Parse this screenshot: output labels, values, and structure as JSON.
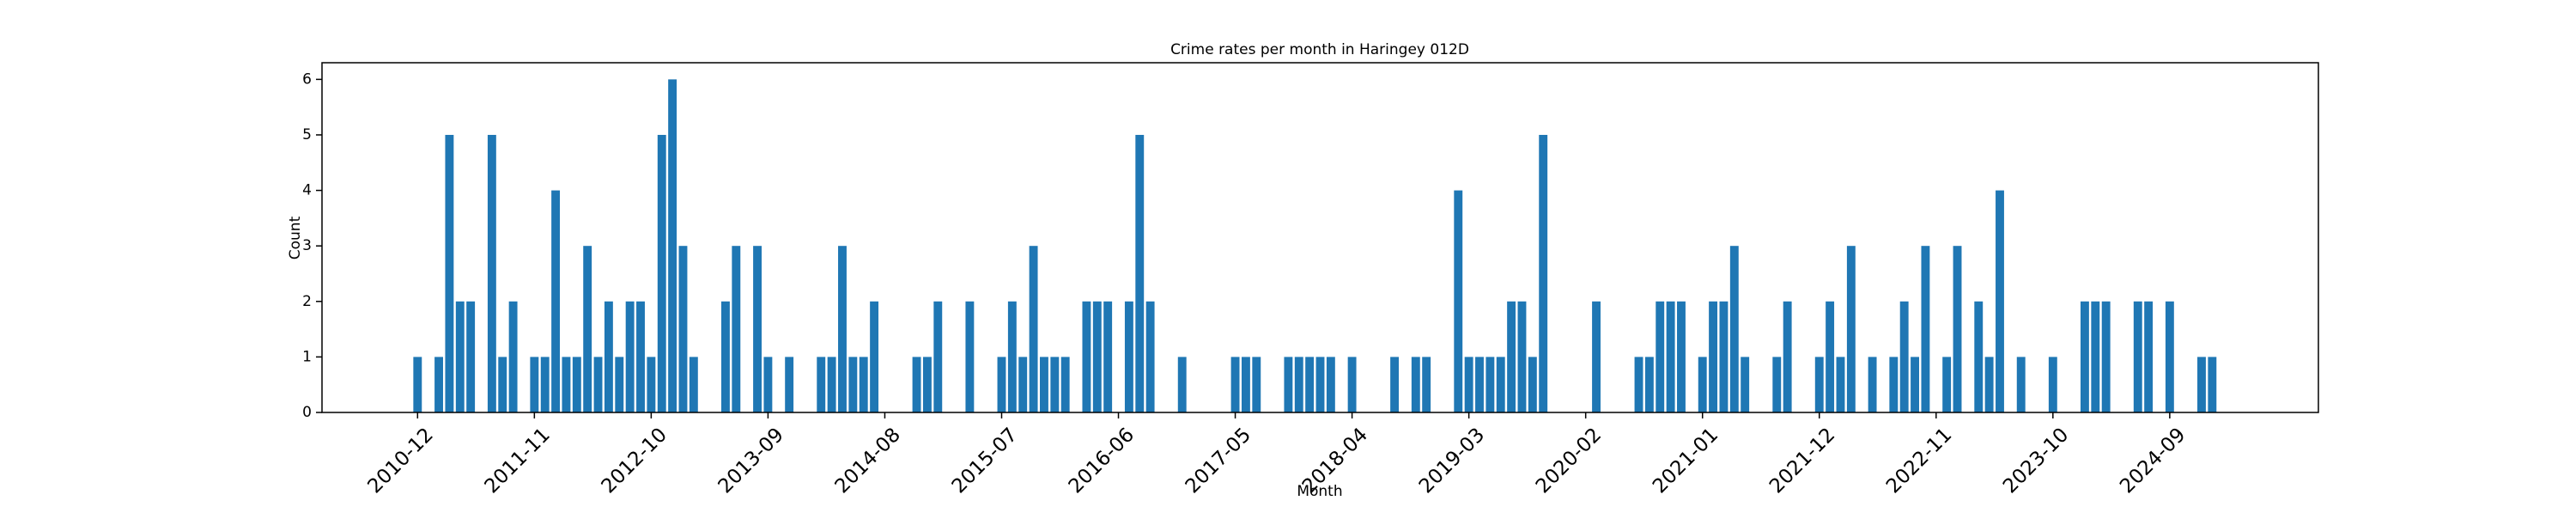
{
  "chart_data": {
    "type": "bar",
    "title": "Crime rates per month in Haringey 012D",
    "xlabel": "Month",
    "ylabel": "Count",
    "color": "#1f77b4",
    "x": [
      "2010-12",
      "2011-02",
      "2011-03",
      "2011-04",
      "2011-05",
      "2011-07",
      "2011-08",
      "2011-09",
      "2011-11",
      "2011-12",
      "2012-01",
      "2012-02",
      "2012-03",
      "2012-04",
      "2012-05",
      "2012-06",
      "2012-07",
      "2012-08",
      "2012-09",
      "2012-10",
      "2012-11",
      "2012-12",
      "2013-01",
      "2013-02",
      "2013-05",
      "2013-06",
      "2013-08",
      "2013-09",
      "2013-11",
      "2014-02",
      "2014-03",
      "2014-04",
      "2014-05",
      "2014-06",
      "2014-07",
      "2014-11",
      "2014-12",
      "2015-01",
      "2015-04",
      "2015-07",
      "2015-08",
      "2015-09",
      "2015-10",
      "2015-11",
      "2015-12",
      "2016-01",
      "2016-03",
      "2016-04",
      "2016-05",
      "2016-07",
      "2016-08",
      "2016-09",
      "2016-12",
      "2017-05",
      "2017-06",
      "2017-07",
      "2017-10",
      "2017-11",
      "2017-12",
      "2018-01",
      "2018-02",
      "2018-04",
      "2018-08",
      "2018-10",
      "2018-11",
      "2019-02",
      "2019-03",
      "2019-04",
      "2019-05",
      "2019-06",
      "2019-07",
      "2019-08",
      "2019-09",
      "2019-10",
      "2020-03",
      "2020-07",
      "2020-08",
      "2020-09",
      "2020-10",
      "2020-11",
      "2021-01",
      "2021-02",
      "2021-03",
      "2021-04",
      "2021-05",
      "2021-08",
      "2021-09",
      "2021-12",
      "2022-01",
      "2022-02",
      "2022-03",
      "2022-05",
      "2022-07",
      "2022-08",
      "2022-09",
      "2022-10",
      "2022-12",
      "2023-01",
      "2023-03",
      "2023-04",
      "2023-05",
      "2023-07",
      "2023-10",
      "2024-01",
      "2024-02",
      "2024-03",
      "2024-06",
      "2024-07",
      "2024-09",
      "2024-12",
      "2025-01"
    ],
    "values": [
      1,
      1,
      5,
      2,
      2,
      5,
      1,
      2,
      1,
      1,
      4,
      1,
      1,
      3,
      1,
      2,
      1,
      2,
      2,
      1,
      5,
      6,
      3,
      1,
      2,
      3,
      3,
      1,
      1,
      1,
      1,
      3,
      1,
      1,
      2,
      1,
      1,
      2,
      2,
      1,
      2,
      1,
      3,
      1,
      1,
      1,
      2,
      2,
      2,
      2,
      5,
      2,
      1,
      1,
      1,
      1,
      1,
      1,
      1,
      1,
      1,
      1,
      1,
      1,
      1,
      4,
      1,
      1,
      1,
      1,
      2,
      2,
      1,
      5,
      2,
      1,
      1,
      2,
      2,
      2,
      1,
      2,
      2,
      3,
      1,
      1,
      2,
      1,
      2,
      1,
      3,
      1,
      1,
      2,
      1,
      3,
      1,
      3,
      2,
      1,
      4,
      1,
      1,
      2,
      2,
      2,
      2,
      2,
      2,
      1,
      1
    ],
    "xlim": [
      "2010-03",
      "2025-11"
    ],
    "xticks": [
      "2010-12",
      "2011-11",
      "2012-10",
      "2013-09",
      "2014-08",
      "2015-07",
      "2016-06",
      "2017-05",
      "2018-04",
      "2019-03",
      "2020-02",
      "2021-01",
      "2021-12",
      "2022-11",
      "2023-10",
      "2024-09"
    ],
    "ylim": [
      0,
      6.3
    ],
    "yticks": [
      0,
      1,
      2,
      3,
      4,
      5,
      6
    ]
  }
}
